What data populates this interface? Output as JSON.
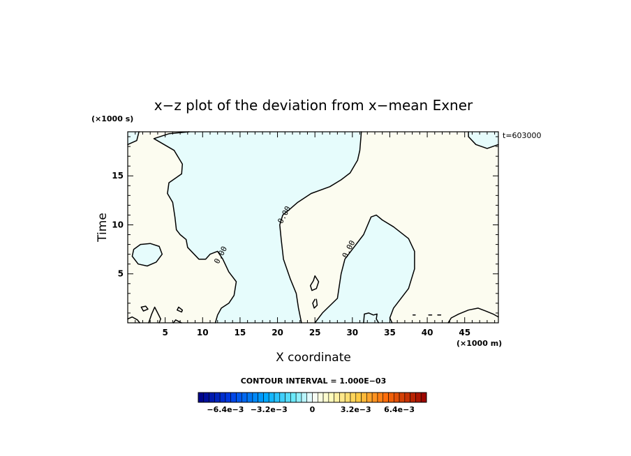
{
  "chart_data": {
    "type": "contour",
    "title": "x−z plot of the deviation from x−mean Exner",
    "xlabel": "X coordinate",
    "ylabel": "Time",
    "x_unit": "(×1000 m)",
    "y_unit": "(×1000 s)",
    "time_annotation": "t=603000",
    "xlim": [
      0,
      49.5
    ],
    "ylim": [
      0,
      19.5
    ],
    "x_ticks": [
      5,
      10,
      15,
      20,
      25,
      30,
      35,
      40,
      45
    ],
    "y_ticks": [
      5,
      10,
      15
    ],
    "contour_interval_text": "CONTOUR INTERVAL = 1.000E−03",
    "contour_labels": [
      {
        "text": "0.00",
        "x": 21.2,
        "y": 10.9
      },
      {
        "text": "0.00",
        "x": 12.7,
        "y": 6.8
      },
      {
        "text": "0.00",
        "x": 29.8,
        "y": 7.4
      }
    ],
    "colorbar": {
      "tick_labels": [
        "−6.4e−3",
        "−3.2e−3",
        "0",
        "3.2e−3",
        "6.4e−3"
      ],
      "tick_values": [
        -0.0064,
        -0.0032,
        0,
        0.0032,
        0.0064
      ],
      "range": [
        -0.0084,
        0.0084
      ],
      "levels": 42
    },
    "colors": {
      "negative_region": "#e6fcfc",
      "positive_region": "#fcfcf0",
      "contour_line": "#000000"
    },
    "regions": [
      {
        "sign": "negative",
        "points": [
          [
            0,
            19.5
          ],
          [
            1.5,
            19.5
          ],
          [
            1.2,
            18.6
          ],
          [
            0,
            18.2
          ]
        ]
      },
      {
        "sign": "negative",
        "points": [
          [
            45.5,
            19.5
          ],
          [
            49.5,
            19.5
          ],
          [
            49.5,
            18.2
          ],
          [
            48,
            17.8
          ],
          [
            46.5,
            18.2
          ],
          [
            45.5,
            19
          ]
        ]
      },
      {
        "sign": "negative",
        "points": [
          [
            7.8,
            8.5
          ],
          [
            8,
            7.7
          ],
          [
            9.5,
            6.5
          ],
          [
            10.4,
            6.5
          ],
          [
            11,
            7
          ],
          [
            12,
            7.3
          ],
          [
            12.7,
            6.5
          ],
          [
            13.5,
            5.2
          ],
          [
            14.5,
            4.2
          ],
          [
            14.2,
            2.8
          ],
          [
            13.5,
            2
          ],
          [
            12.5,
            1.5
          ],
          [
            12,
            0.8
          ],
          [
            11.7,
            0
          ],
          [
            23.2,
            0
          ],
          [
            22.8,
            1.5
          ],
          [
            22.5,
            3
          ],
          [
            21.7,
            4.5
          ],
          [
            20.8,
            6.5
          ],
          [
            20.5,
            8.5
          ],
          [
            20.3,
            10
          ],
          [
            20.7,
            11
          ],
          [
            21.5,
            11.5
          ],
          [
            22.7,
            12.3
          ],
          [
            24.5,
            13.2
          ],
          [
            27,
            13.9
          ],
          [
            28.5,
            14.6
          ],
          [
            29.7,
            15.3
          ],
          [
            30.7,
            16.6
          ],
          [
            31,
            17.6
          ],
          [
            31.2,
            19.5
          ],
          [
            8.2,
            19.5
          ],
          [
            5.5,
            19.3
          ],
          [
            3.5,
            18.8
          ],
          [
            6.2,
            17.6
          ],
          [
            7.3,
            16.2
          ],
          [
            7.2,
            15.2
          ],
          [
            5.5,
            14.3
          ],
          [
            5.3,
            13.2
          ],
          [
            6,
            12.3
          ],
          [
            6.3,
            10.8
          ],
          [
            6.5,
            9.5
          ],
          [
            7,
            9
          ]
        ]
      },
      {
        "sign": "negative",
        "points": [
          [
            25,
            0
          ],
          [
            26,
            1
          ],
          [
            28,
            2.5
          ],
          [
            28.5,
            5
          ],
          [
            29,
            6.5
          ],
          [
            30,
            7.5
          ],
          [
            31.5,
            9
          ],
          [
            32.5,
            10.8
          ],
          [
            33.2,
            11
          ],
          [
            34,
            10.5
          ],
          [
            35.5,
            9.8
          ],
          [
            37.5,
            8.6
          ],
          [
            38.3,
            7.3
          ],
          [
            38.3,
            5.5
          ],
          [
            37.5,
            3.5
          ],
          [
            35.5,
            1.5
          ],
          [
            35,
            0.5
          ],
          [
            35.3,
            0
          ]
        ]
      },
      {
        "sign": "negative",
        "points": [
          [
            1.7,
            8
          ],
          [
            0.8,
            7.5
          ],
          [
            0.6,
            6.8
          ],
          [
            1.4,
            6
          ],
          [
            2.6,
            5.8
          ],
          [
            3.8,
            6.2
          ],
          [
            4.6,
            7
          ],
          [
            4.2,
            7.8
          ],
          [
            3,
            8.1
          ]
        ]
      }
    ],
    "contour_lines": [
      [
        [
          0,
          18.2
        ],
        [
          1.2,
          18.6
        ],
        [
          1.5,
          19.5
        ]
      ],
      [
        [
          45.5,
          19.5
        ],
        [
          45.5,
          19
        ],
        [
          46.5,
          18.2
        ],
        [
          48,
          17.8
        ],
        [
          49.5,
          18.2
        ]
      ],
      [
        [
          8.2,
          19.5
        ],
        [
          5.5,
          19.3
        ],
        [
          3.5,
          18.8
        ],
        [
          6.2,
          17.6
        ],
        [
          7.3,
          16.2
        ],
        [
          7.2,
          15.2
        ],
        [
          5.5,
          14.3
        ],
        [
          5.3,
          13.2
        ],
        [
          6,
          12.3
        ],
        [
          6.3,
          10.8
        ],
        [
          6.5,
          9.5
        ],
        [
          7,
          9
        ],
        [
          7.8,
          8.5
        ],
        [
          8,
          7.7
        ],
        [
          9.5,
          6.5
        ],
        [
          10.4,
          6.5
        ],
        [
          11,
          7
        ],
        [
          12,
          7.3
        ],
        [
          12.7,
          6.5
        ],
        [
          13.5,
          5.2
        ],
        [
          14.5,
          4.2
        ],
        [
          14.2,
          2.8
        ],
        [
          13.5,
          2
        ],
        [
          12.5,
          1.5
        ],
        [
          12,
          0.8
        ],
        [
          11.7,
          0
        ]
      ],
      [
        [
          31.2,
          19.5
        ],
        [
          31,
          17.6
        ],
        [
          30.7,
          16.6
        ],
        [
          29.7,
          15.3
        ],
        [
          28.5,
          14.6
        ],
        [
          27,
          13.9
        ],
        [
          24.5,
          13.2
        ],
        [
          22.7,
          12.3
        ],
        [
          21.5,
          11.5
        ],
        [
          20.7,
          11
        ],
        [
          20.3,
          10
        ],
        [
          20.5,
          8.5
        ],
        [
          20.8,
          6.5
        ],
        [
          21.7,
          4.5
        ],
        [
          22.5,
          3
        ],
        [
          22.8,
          1.5
        ],
        [
          23.2,
          0
        ]
      ],
      [
        [
          25,
          0
        ],
        [
          26,
          1
        ],
        [
          28,
          2.5
        ],
        [
          28.5,
          5
        ],
        [
          29,
          6.5
        ],
        [
          30,
          7.5
        ],
        [
          31.5,
          9
        ],
        [
          32.5,
          10.8
        ],
        [
          33.2,
          11
        ],
        [
          34,
          10.5
        ],
        [
          35.5,
          9.8
        ],
        [
          37.5,
          8.6
        ],
        [
          38.3,
          7.3
        ],
        [
          38.3,
          5.5
        ],
        [
          37.5,
          3.5
        ],
        [
          35.5,
          1.5
        ],
        [
          35,
          0.5
        ],
        [
          35.3,
          0
        ]
      ],
      [
        [
          1.7,
          8
        ],
        [
          0.8,
          7.5
        ],
        [
          0.6,
          6.8
        ],
        [
          1.4,
          6
        ],
        [
          2.6,
          5.8
        ],
        [
          3.8,
          6.2
        ],
        [
          4.6,
          7
        ],
        [
          4.2,
          7.8
        ],
        [
          3,
          8.1
        ],
        [
          1.7,
          8
        ]
      ],
      [
        [
          24.8,
          4.3
        ],
        [
          24.4,
          3.8
        ],
        [
          24.6,
          3.3
        ],
        [
          25.2,
          3.5
        ],
        [
          25.5,
          4.2
        ],
        [
          25,
          4.8
        ],
        [
          24.8,
          4.3
        ]
      ],
      [
        [
          25,
          2.4
        ],
        [
          24.7,
          2.0
        ],
        [
          24.9,
          1.5
        ],
        [
          25.3,
          1.8
        ],
        [
          25.2,
          2.4
        ]
      ],
      [
        [
          6.8,
          1.6
        ],
        [
          7.3,
          1.3
        ],
        [
          7.2,
          1.1
        ],
        [
          6.6,
          1.3
        ],
        [
          6.8,
          1.6
        ]
      ],
      [
        [
          1.8,
          1.6
        ],
        [
          2.4,
          1.7
        ],
        [
          2.7,
          1.4
        ],
        [
          2.1,
          1.2
        ],
        [
          1.8,
          1.6
        ]
      ],
      [
        [
          0,
          0.4
        ],
        [
          0.6,
          0.6
        ],
        [
          1.3,
          0.3
        ],
        [
          1.6,
          0
        ]
      ],
      [
        [
          2.8,
          0
        ],
        [
          3.2,
          0.9
        ],
        [
          3.6,
          1.6
        ],
        [
          4.0,
          1.0
        ],
        [
          4.4,
          0.4
        ],
        [
          4.2,
          0
        ]
      ],
      [
        [
          6.1,
          0
        ],
        [
          6.4,
          0.3
        ],
        [
          6.9,
          0.1
        ],
        [
          7.2,
          0
        ]
      ],
      [
        [
          31.5,
          0
        ],
        [
          31.6,
          0.9
        ],
        [
          32.2,
          1.0
        ],
        [
          32.8,
          0.8
        ],
        [
          33.3,
          0.9
        ],
        [
          33.2,
          0.4
        ],
        [
          33.5,
          0
        ]
      ],
      [
        [
          42.8,
          0
        ],
        [
          43.2,
          0.5
        ],
        [
          44.2,
          0.9
        ],
        [
          45.5,
          1.3
        ],
        [
          46.8,
          1.5
        ],
        [
          47.8,
          1.2
        ],
        [
          48.8,
          0.9
        ],
        [
          49.5,
          0.6
        ]
      ],
      [
        [
          40.2,
          0.8
        ],
        [
          40.6,
          0.8
        ]
      ],
      [
        [
          41.4,
          0.8
        ],
        [
          41.8,
          0.8
        ]
      ],
      [
        [
          38.1,
          0.8
        ],
        [
          38.4,
          0.8
        ]
      ]
    ]
  }
}
